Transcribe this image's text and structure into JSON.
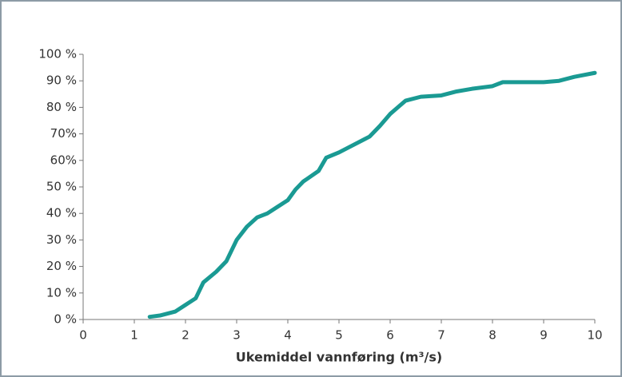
{
  "chart_data": {
    "type": "line",
    "x_label": "Ukemiddel vannføring (m³/s)",
    "x": [
      1.3,
      1.5,
      1.8,
      2.0,
      2.2,
      2.35,
      2.6,
      2.8,
      3.0,
      3.2,
      3.4,
      3.6,
      3.8,
      4.0,
      4.15,
      4.3,
      4.6,
      4.75,
      5.0,
      5.2,
      5.5,
      5.6,
      5.8,
      6.0,
      6.15,
      6.3,
      6.6,
      7.0,
      7.3,
      7.6,
      8.0,
      8.2,
      8.5,
      9.0,
      9.3,
      9.6,
      10.0
    ],
    "series": [
      {
        "color": "#1a9a93",
        "values": [
          1,
          1.5,
          3,
          5.5,
          8,
          14,
          18,
          22,
          30,
          35,
          38.5,
          40,
          42.5,
          45,
          49,
          52,
          56,
          61,
          63,
          65,
          68,
          69,
          73,
          77.5,
          80,
          82.5,
          84,
          84.5,
          86,
          87,
          88,
          89.5,
          89.5,
          89.5,
          90,
          91.5,
          93
        ]
      }
    ],
    "xlim": [
      0,
      10
    ],
    "xticks": [
      0,
      1,
      2,
      3,
      4,
      5,
      6,
      7,
      8,
      9,
      10
    ],
    "ylim": [
      0,
      100
    ],
    "yticks": [
      {
        "value": 0,
        "label": "0 %"
      },
      {
        "value": 10,
        "label": "10 %"
      },
      {
        "value": 20,
        "label": "20 %"
      },
      {
        "value": 30,
        "label": "30 %"
      },
      {
        "value": 40,
        "label": "40 %"
      },
      {
        "value": 50,
        "label": "50 %"
      },
      {
        "value": 60,
        "label": "60%"
      },
      {
        "value": 70,
        "label": "70%"
      },
      {
        "value": 80,
        "label": "80 %"
      },
      {
        "value": 90,
        "label": "90 %"
      },
      {
        "value": 100,
        "label": "100 %"
      }
    ],
    "grid": false
  }
}
